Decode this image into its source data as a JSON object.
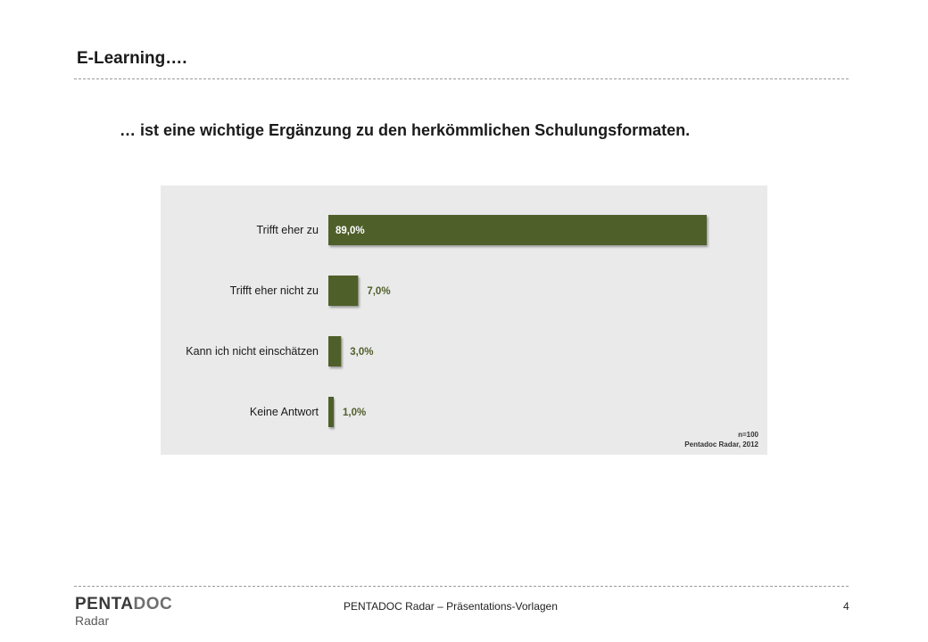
{
  "header": {
    "title": "E-Learning…."
  },
  "statement": "… ist eine wichtige Ergänzung zu den herkömmlichen Schulungsformaten.",
  "chart_data": {
    "type": "bar",
    "orientation": "horizontal",
    "categories": [
      "Trifft eher zu",
      "Trifft eher nicht zu",
      "Kann ich nicht einschätzen",
      "Keine Antwort"
    ],
    "values": [
      89.0,
      7.0,
      3.0,
      1.0
    ],
    "value_labels": [
      "89,0%",
      "7,0%",
      "3,0%",
      "1,0%"
    ],
    "unit": "%",
    "xlim": [
      0,
      100
    ],
    "grid": false,
    "bar_color": "#4f5f2a",
    "background_color": "#eaeaea"
  },
  "notes": {
    "sample": "n=100",
    "source": "Pentadoc Radar, 2012"
  },
  "footer": {
    "logo_part1": "PENTA",
    "logo_part2": "DOC",
    "logo_sub": "Radar",
    "text": "PENTADOC Radar – Präsentations-Vorlagen",
    "page": "4"
  }
}
